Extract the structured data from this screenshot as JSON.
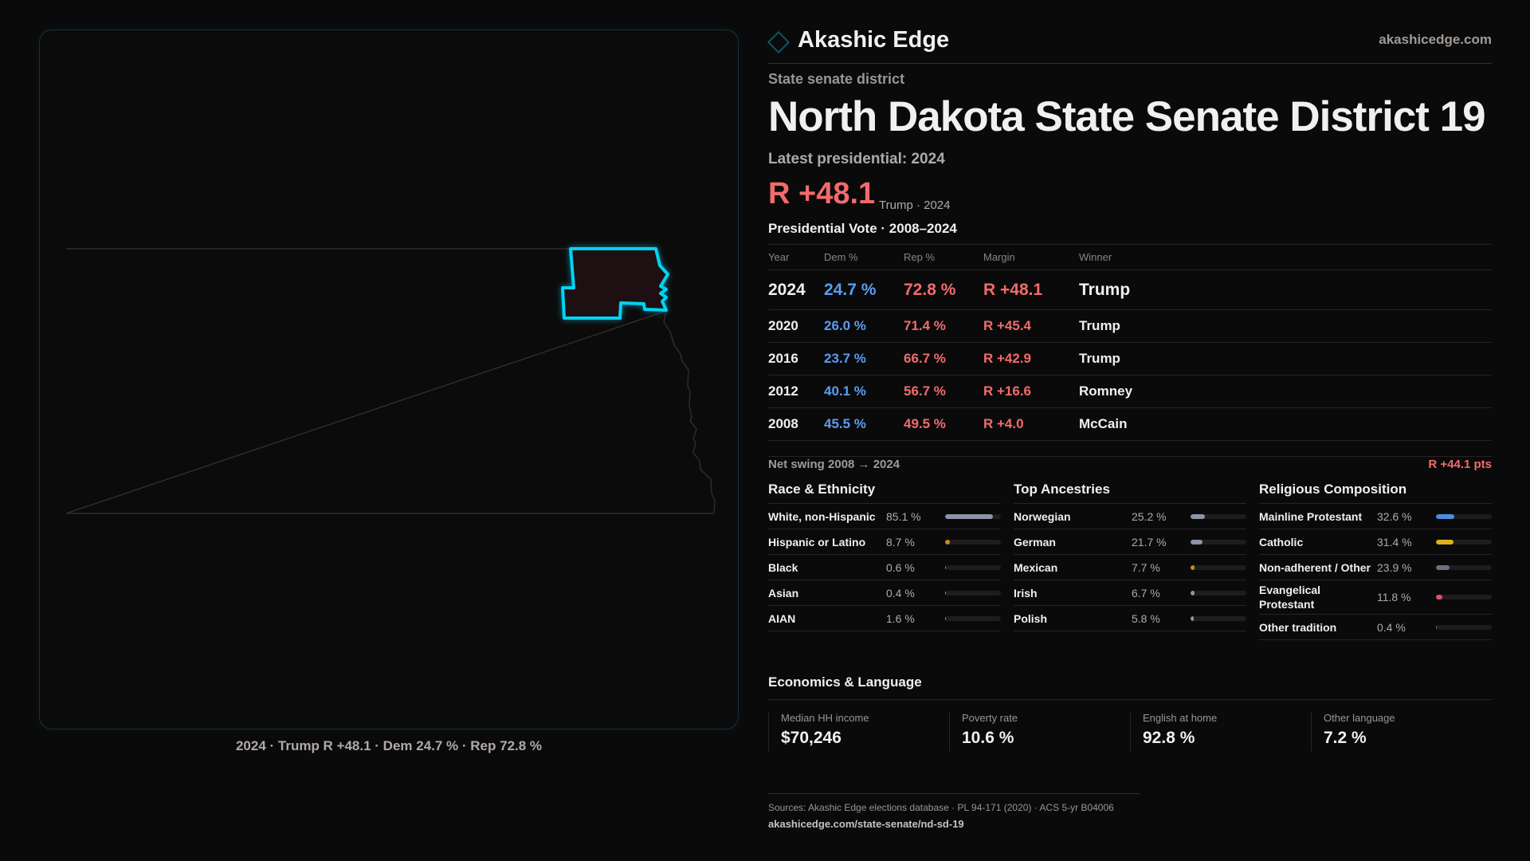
{
  "brand": {
    "name": "Akashic Edge",
    "site": "akashicedge.com"
  },
  "kicker": "State senate district",
  "title": "North Dakota State Senate District 19",
  "latest": "Latest presidential: 2024",
  "headline": {
    "margin": "R +48.1",
    "sub": "Trump · 2024"
  },
  "pres": {
    "title": "Presidential Vote · 2008–2024",
    "headers": [
      "Year",
      "Dem %",
      "Rep %",
      "Margin",
      "Winner"
    ],
    "rows": [
      {
        "year": "2024",
        "dem": "24.7 %",
        "rep": "72.8 %",
        "margin": "R +48.1",
        "winner": "Trump"
      },
      {
        "year": "2020",
        "dem": "26.0 %",
        "rep": "71.4 %",
        "margin": "R +45.4",
        "winner": "Trump"
      },
      {
        "year": "2016",
        "dem": "23.7 %",
        "rep": "66.7 %",
        "margin": "R +42.9",
        "winner": "Trump"
      },
      {
        "year": "2012",
        "dem": "40.1 %",
        "rep": "56.7 %",
        "margin": "R +16.6",
        "winner": "Romney"
      },
      {
        "year": "2008",
        "dem": "45.5 %",
        "rep": "49.5 %",
        "margin": "R +4.0",
        "winner": "McCain"
      }
    ]
  },
  "swing": {
    "label": "Net swing 2008 → 2024",
    "value": "R +44.1 pts"
  },
  "race": {
    "title": "Race & Ethnicity",
    "rows": [
      {
        "label": "White, non-Hispanic",
        "value": "85.1 %",
        "pct": 85.1,
        "color": "#8a94a6"
      },
      {
        "label": "Hispanic or Latino",
        "value": "8.7 %",
        "pct": 8.7,
        "color": "#d08a1a"
      },
      {
        "label": "Black",
        "value": "0.6 %",
        "pct": 0.6,
        "color": "#8a94a6"
      },
      {
        "label": "Asian",
        "value": "0.4 %",
        "pct": 0.4,
        "color": "#8a94a6"
      },
      {
        "label": "AIAN",
        "value": "1.6 %",
        "pct": 1.6,
        "color": "#d08a1a"
      }
    ]
  },
  "ancestry": {
    "title": "Top Ancestries",
    "rows": [
      {
        "label": "Norwegian",
        "value": "25.2 %",
        "pct": 25.2,
        "color": "#8a94a6"
      },
      {
        "label": "German",
        "value": "21.7 %",
        "pct": 21.7,
        "color": "#8a94a6"
      },
      {
        "label": "Mexican",
        "value": "7.7 %",
        "pct": 7.7,
        "color": "#d08a1a"
      },
      {
        "label": "Irish",
        "value": "6.7 %",
        "pct": 6.7,
        "color": "#8a94a6"
      },
      {
        "label": "Polish",
        "value": "5.8 %",
        "pct": 5.8,
        "color": "#8a94a6"
      }
    ]
  },
  "religion": {
    "title": "Religious Composition",
    "rows": [
      {
        "label": "Mainline Protestant",
        "value": "32.6 %",
        "pct": 32.6,
        "color": "#4a8fe0"
      },
      {
        "label": "Catholic",
        "value": "31.4 %",
        "pct": 31.4,
        "color": "#e0b020"
      },
      {
        "label": "Non-adherent / Other",
        "value": "23.9 %",
        "pct": 23.9,
        "color": "#6a7080"
      },
      {
        "label": "Evangelical Protestant",
        "value": "11.8 %",
        "pct": 11.8,
        "color": "#e05060"
      },
      {
        "label": "Other tradition",
        "value": "0.4 %",
        "pct": 0.4,
        "color": "#6a7080"
      }
    ]
  },
  "econ": {
    "title": "Economics & Language",
    "items": [
      {
        "label": "Median HH income",
        "value": "$70,246"
      },
      {
        "label": "Poverty rate",
        "value": "10.6 %"
      },
      {
        "label": "English at home",
        "value": "92.8 %"
      },
      {
        "label": "Other language",
        "value": "7.2 %"
      }
    ]
  },
  "map_caption": "2024 · Trump R +48.1 · Dem 24.7 % · Rep 72.8 %",
  "footer": {
    "sources": "Sources: Akashic Edge elections database · PL 94-171 (2020) · ACS 5-yr B04006",
    "url": "akashicedge.com/state-senate/nd-sd-19"
  }
}
